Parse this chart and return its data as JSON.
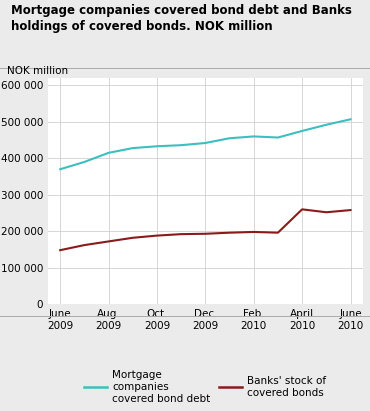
{
  "title_line1": "Mortgage companies covered bond debt and Banks",
  "title_line2": "holdings of covered bonds. NOK million",
  "ylabel": "NOK million",
  "x_labels": [
    "June\n2009",
    "Aug.\n2009",
    "Oct.\n2009",
    "Dec.\n2009",
    "Feb.\n2010",
    "April\n2010",
    "June\n2010"
  ],
  "x_positions": [
    0,
    2,
    4,
    6,
    8,
    10,
    12
  ],
  "mortgage_x": [
    0,
    1,
    2,
    3,
    4,
    5,
    6,
    7,
    8,
    9,
    10,
    11,
    12
  ],
  "mortgage_y": [
    370000,
    390000,
    415000,
    428000,
    433000,
    436000,
    442000,
    455000,
    460000,
    457000,
    475000,
    492000,
    507000
  ],
  "banks_x": [
    0,
    1,
    2,
    3,
    4,
    5,
    6,
    7,
    8,
    9,
    10,
    11,
    12
  ],
  "banks_y": [
    148000,
    162000,
    172000,
    182000,
    188000,
    192000,
    193000,
    196000,
    198000,
    196000,
    260000,
    252000,
    258000
  ],
  "mortgage_color": "#3dbfbf",
  "banks_color": "#8b1a1a",
  "ylim": [
    0,
    620000
  ],
  "yticks": [
    0,
    100000,
    200000,
    300000,
    400000,
    500000,
    600000
  ],
  "legend_mortgage": "Mortgage\ncompanies\ncovered bond debt",
  "legend_banks": "Banks' stock of\ncovered bonds",
  "bg_color": "#ebebeb",
  "plot_bg_color": "#ffffff",
  "grid_color": "#d0d0d0"
}
